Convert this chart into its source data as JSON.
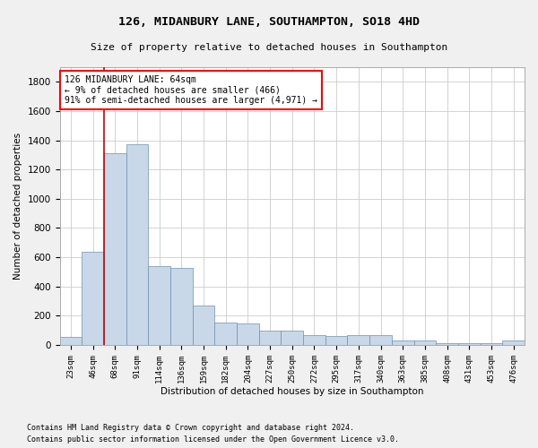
{
  "title": "126, MIDANBURY LANE, SOUTHAMPTON, SO18 4HD",
  "subtitle": "Size of property relative to detached houses in Southampton",
  "xlabel": "Distribution of detached houses by size in Southampton",
  "ylabel": "Number of detached properties",
  "footnote1": "Contains HM Land Registry data © Crown copyright and database right 2024.",
  "footnote2": "Contains public sector information licensed under the Open Government Licence v3.0.",
  "annotation_line1": "126 MIDANBURY LANE: 64sqm",
  "annotation_line2": "← 9% of detached houses are smaller (466)",
  "annotation_line3": "91% of semi-detached houses are larger (4,971) →",
  "bar_color": "#c8d8e8",
  "bar_edge_color": "#7090b0",
  "redline_color": "#cc0000",
  "categories": [
    "23sqm",
    "46sqm",
    "68sqm",
    "91sqm",
    "114sqm",
    "136sqm",
    "159sqm",
    "182sqm",
    "204sqm",
    "227sqm",
    "250sqm",
    "272sqm",
    "295sqm",
    "317sqm",
    "340sqm",
    "363sqm",
    "385sqm",
    "408sqm",
    "431sqm",
    "453sqm",
    "476sqm"
  ],
  "values": [
    55,
    640,
    1310,
    1370,
    540,
    530,
    270,
    155,
    150,
    100,
    95,
    70,
    60,
    70,
    65,
    30,
    30,
    10,
    10,
    10,
    30
  ],
  "ylim": [
    0,
    1900
  ],
  "yticks": [
    0,
    200,
    400,
    600,
    800,
    1000,
    1200,
    1400,
    1600,
    1800
  ],
  "bg_color": "#f0f0f0",
  "plot_bg_color": "#ffffff",
  "grid_color": "#cccccc"
}
